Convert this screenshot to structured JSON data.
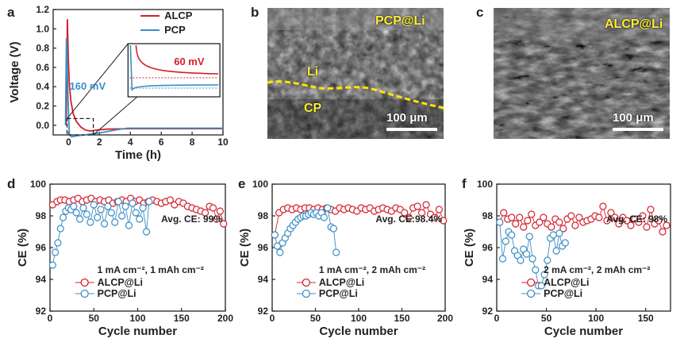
{
  "panels": {
    "a": "a",
    "b": "b",
    "c": "c",
    "d": "d",
    "e": "e",
    "f": "f"
  },
  "colors": {
    "red": "#d2202c",
    "blue": "#3b8ec4",
    "sem_label": "#ffee33",
    "dashed_interface": "#ffe600"
  },
  "sem_b": {
    "labels": [
      "PCP@Li",
      "Li",
      "CP"
    ],
    "scale_text": "100 μm"
  },
  "sem_c": {
    "labels": [
      "ALCP@Li"
    ],
    "scale_text": "100 μm"
  },
  "chart_data": [
    {
      "id": "a",
      "type": "line",
      "xlabel": "Time (h)",
      "ylabel": "Voltage (V)",
      "xlim": [
        -1,
        10
      ],
      "ylim": [
        -0.1,
        1.2
      ],
      "xticks": [
        0,
        2,
        4,
        6,
        8,
        10
      ],
      "yticks": [
        0.0,
        0.2,
        0.4,
        0.6,
        0.8,
        1.0,
        1.2
      ],
      "ytick_labels": [
        "0.0",
        "0.2",
        "0.4",
        "0.6",
        "0.8",
        "1.0",
        "1.2"
      ],
      "legend": [
        "ALCP",
        "PCP"
      ],
      "series": [
        {
          "name": "ALCP",
          "color": "#d2202c",
          "x": [
            -0.15,
            -0.12,
            -0.08,
            -0.02,
            0.05,
            0.15,
            0.3,
            0.5,
            0.8,
            1.1,
            1.4,
            1.8,
            2.5,
            4,
            6,
            8,
            10
          ],
          "y": [
            0.0,
            0.55,
            1.1,
            0.7,
            0.42,
            0.25,
            0.12,
            0.04,
            -0.02,
            -0.05,
            -0.06,
            -0.05,
            -0.04,
            -0.035,
            -0.035,
            -0.035,
            -0.035
          ]
        },
        {
          "name": "PCP",
          "color": "#3b8ec4",
          "x": [
            -0.2,
            -0.17,
            -0.14,
            -0.1,
            -0.05,
            0.0,
            0.05,
            0.2,
            0.5,
            1.0,
            2.0,
            3.0,
            3.8,
            4.5,
            6,
            8,
            10
          ],
          "y": [
            0.0,
            0.5,
            0.9,
            0.7,
            0.35,
            0.1,
            -0.1,
            -0.12,
            -0.11,
            -0.1,
            -0.08,
            -0.05,
            -0.03,
            -0.03,
            -0.03,
            -0.03,
            -0.03
          ]
        }
      ],
      "inset": {
        "annotations": [
          "60 mV",
          "160 mV"
        ]
      }
    },
    {
      "id": "d",
      "type": "scatter",
      "xlabel": "Cycle number",
      "ylabel": "CE (%)",
      "xlim": [
        0,
        200
      ],
      "ylim": [
        92,
        100
      ],
      "xticks": [
        0,
        50,
        100,
        150,
        200
      ],
      "yticks": [
        92,
        94,
        96,
        98,
        100
      ],
      "avg_label": "Avg. CE: 99%",
      "condition": "1 mA cm⁻², 1 mAh cm⁻²",
      "legend": [
        "ALCP@Li",
        "PCP@Li"
      ],
      "series": [
        {
          "name": "ALCP@Li",
          "color": "#d2202c",
          "x": [
            3,
            8,
            12,
            17,
            22,
            27,
            32,
            37,
            42,
            47,
            52,
            57,
            62,
            67,
            72,
            77,
            82,
            87,
            92,
            97,
            102,
            107,
            112,
            117,
            122,
            127,
            132,
            137,
            142,
            147,
            152,
            157,
            162,
            167,
            172,
            177,
            182,
            186,
            190,
            194,
            198
          ],
          "y": [
            98.7,
            98.9,
            99.0,
            99.0,
            98.9,
            99.0,
            99.1,
            98.9,
            99.0,
            99.1,
            98.9,
            99.0,
            98.9,
            99.0,
            98.8,
            98.9,
            99.0,
            98.9,
            99.1,
            98.9,
            99.0,
            98.8,
            98.9,
            99.0,
            98.9,
            98.8,
            98.9,
            99.0,
            98.7,
            98.9,
            98.8,
            98.6,
            98.5,
            98.4,
            98.3,
            98.2,
            98.6,
            98.5,
            97.8,
            98.3,
            97.5
          ]
        },
        {
          "name": "PCP@Li",
          "color": "#3b8ec4",
          "x": [
            3,
            6,
            9,
            12,
            15,
            18,
            21,
            24,
            27,
            30,
            34,
            38,
            42,
            46,
            50,
            54,
            58,
            62,
            66,
            70,
            74,
            78,
            82,
            86,
            90,
            94,
            98,
            102,
            106,
            110,
            113
          ],
          "y": [
            94.9,
            95.7,
            96.3,
            97.2,
            97.9,
            98.3,
            98.5,
            98.4,
            98.6,
            98.2,
            97.8,
            98.5,
            98.1,
            97.6,
            98.7,
            97.9,
            98.4,
            97.5,
            98.6,
            98.2,
            97.6,
            98.9,
            98.0,
            98.6,
            97.4,
            98.8,
            98.2,
            97.8,
            98.5,
            97.0,
            98.9
          ]
        }
      ]
    },
    {
      "id": "e",
      "type": "scatter",
      "xlabel": "Cycle number",
      "ylabel": "CE (%)",
      "xlim": [
        0,
        200
      ],
      "ylim": [
        92,
        100
      ],
      "xticks": [
        0,
        50,
        100,
        150,
        200
      ],
      "yticks": [
        92,
        94,
        96,
        98,
        100
      ],
      "avg_label": "Avg. CE:98.4%",
      "condition": "1 mA cm⁻², 2 mAh cm⁻²",
      "legend": [
        "ALCP@Li",
        "PCP@Li"
      ],
      "series": [
        {
          "name": "ALCP@Li",
          "color": "#d2202c",
          "x": [
            3,
            8,
            13,
            18,
            23,
            28,
            33,
            38,
            43,
            48,
            53,
            58,
            63,
            68,
            73,
            78,
            83,
            88,
            93,
            98,
            103,
            108,
            113,
            118,
            123,
            128,
            133,
            138,
            143,
            148,
            153,
            158,
            163,
            168,
            173,
            178,
            183,
            188,
            193,
            198
          ],
          "y": [
            96.8,
            98.2,
            98.4,
            98.5,
            98.4,
            98.5,
            98.4,
            98.5,
            98.5,
            98.4,
            98.5,
            98.4,
            98.5,
            98.4,
            98.3,
            98.5,
            98.4,
            98.5,
            98.4,
            98.3,
            98.5,
            98.4,
            98.5,
            98.3,
            98.4,
            98.5,
            98.4,
            98.3,
            98.5,
            98.4,
            98.2,
            97.9,
            98.5,
            98.6,
            98.2,
            98.7,
            98.1,
            97.9,
            98.4,
            97.7
          ]
        },
        {
          "name": "PCP@Li",
          "color": "#3b8ec4",
          "x": [
            3,
            6,
            9,
            12,
            15,
            18,
            21,
            24,
            27,
            30,
            33,
            36,
            39,
            42,
            45,
            48,
            51,
            54,
            57,
            60,
            64,
            68,
            71,
            74
          ],
          "y": [
            96.8,
            96.1,
            95.7,
            96.3,
            96.6,
            96.9,
            97.2,
            97.4,
            97.6,
            97.8,
            97.9,
            98.0,
            98.0,
            98.1,
            98.2,
            98.1,
            98.2,
            98.0,
            98.2,
            97.9,
            98.5,
            97.3,
            97.2,
            95.7
          ]
        }
      ]
    },
    {
      "id": "f",
      "type": "scatter",
      "xlabel": "Cycle number",
      "ylabel": "CE (%)",
      "xlim": [
        0,
        175
      ],
      "ylim": [
        92,
        100
      ],
      "xticks": [
        0,
        50,
        100,
        150
      ],
      "yticks": [
        92,
        94,
        96,
        98,
        100
      ],
      "avg_label": "Avg. CE: 98%",
      "condition": "2 mA cm⁻², 2 mAh cm⁻²",
      "legend": [
        "ALCP@Li",
        "PCP@Li"
      ],
      "series": [
        {
          "name": "ALCP@Li",
          "color": "#d2202c",
          "x": [
            3,
            7,
            11,
            15,
            19,
            23,
            27,
            31,
            35,
            39,
            43,
            47,
            51,
            55,
            59,
            63,
            67,
            71,
            75,
            79,
            83,
            87,
            91,
            95,
            99,
            103,
            107,
            111,
            115,
            119,
            123,
            127,
            131,
            135,
            139,
            143,
            147,
            151,
            155,
            159,
            163,
            167,
            171
          ],
          "y": [
            97.6,
            98.2,
            97.8,
            97.9,
            97.5,
            97.9,
            97.3,
            97.7,
            98.1,
            97.4,
            97.6,
            97.9,
            97.5,
            97.3,
            97.8,
            97.6,
            97.2,
            97.8,
            98.0,
            97.4,
            97.9,
            97.6,
            97.7,
            97.8,
            98.0,
            97.9,
            98.6,
            97.7,
            98.2,
            97.9,
            97.5,
            97.9,
            97.7,
            97.4,
            97.8,
            97.6,
            98.0,
            97.3,
            98.4,
            97.5,
            97.7,
            97.0,
            97.4
          ]
        },
        {
          "name": "PCP@Li",
          "color": "#3b8ec4",
          "x": [
            3,
            6,
            9,
            12,
            15,
            18,
            21,
            24,
            27,
            30,
            33,
            36,
            39,
            42,
            45,
            48,
            51,
            54,
            57,
            60,
            63,
            66,
            69
          ],
          "y": [
            97.6,
            95.3,
            96.4,
            97.0,
            96.8,
            95.8,
            95.5,
            95.2,
            95.9,
            95.6,
            96.7,
            95.3,
            94.6,
            93.6,
            93.6,
            94.3,
            95.2,
            96.6,
            96.8,
            95.8,
            96.9,
            96.1,
            96.3
          ]
        }
      ]
    }
  ]
}
